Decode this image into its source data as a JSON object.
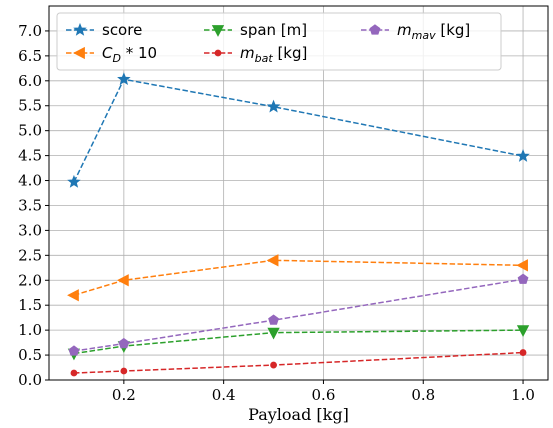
{
  "chart_data": {
    "type": "line",
    "xlabel": "Payload [kg]",
    "ylabel": "",
    "xlim": [
      0.05,
      1.05
    ],
    "ylim": [
      0.0,
      7.5
    ],
    "xticks": [
      0.2,
      0.4,
      0.6,
      0.8,
      1.0
    ],
    "xtick_labels": [
      "0.2",
      "0.4",
      "0.6",
      "0.8",
      "1.0"
    ],
    "yticks": [
      0.0,
      0.5,
      1.0,
      1.5,
      2.0,
      2.5,
      3.0,
      3.5,
      4.0,
      4.5,
      5.0,
      5.5,
      6.0,
      6.5,
      7.0
    ],
    "ytick_labels": [
      "0.0",
      "0.5",
      "1.0",
      "1.5",
      "2.0",
      "2.5",
      "3.0",
      "3.5",
      "4.0",
      "4.5",
      "5.0",
      "5.5",
      "6.0",
      "6.5",
      "7.0"
    ],
    "grid": true,
    "legend_placement": "top",
    "x": [
      0.1,
      0.2,
      0.5,
      1.0
    ],
    "series": [
      {
        "key": "score",
        "label_parts": [
          {
            "text": "score",
            "italic": false
          }
        ],
        "values": [
          3.97,
          6.03,
          5.48,
          4.49
        ],
        "color": "#1f77b4",
        "marker": "star"
      },
      {
        "key": "cd",
        "label_parts": [
          {
            "text": "C",
            "italic": true
          },
          {
            "text": "D",
            "italic": true,
            "sub": true
          },
          {
            "text": " * 10",
            "italic": false
          }
        ],
        "values": [
          1.7,
          2.0,
          2.4,
          2.3
        ],
        "color": "#ff7f0e",
        "marker": "triangle-left"
      },
      {
        "key": "span",
        "label_parts": [
          {
            "text": "span [m]",
            "italic": false
          }
        ],
        "values": [
          0.53,
          0.68,
          0.95,
          1.0
        ],
        "color": "#2ca02c",
        "marker": "triangle-down"
      },
      {
        "key": "mbat",
        "label_parts": [
          {
            "text": "m",
            "italic": true
          },
          {
            "text": "bat",
            "italic": true,
            "sub": true
          },
          {
            "text": " [kg]",
            "italic": false
          }
        ],
        "values": [
          0.14,
          0.18,
          0.3,
          0.55
        ],
        "color": "#d62728",
        "marker": "dot"
      },
      {
        "key": "mmav",
        "label_parts": [
          {
            "text": "m",
            "italic": true
          },
          {
            "text": "mav",
            "italic": true,
            "sub": true
          },
          {
            "text": " [kg]",
            "italic": false
          }
        ],
        "values": [
          0.58,
          0.73,
          1.2,
          2.02
        ],
        "color": "#9467bd",
        "marker": "pentagon"
      }
    ]
  }
}
